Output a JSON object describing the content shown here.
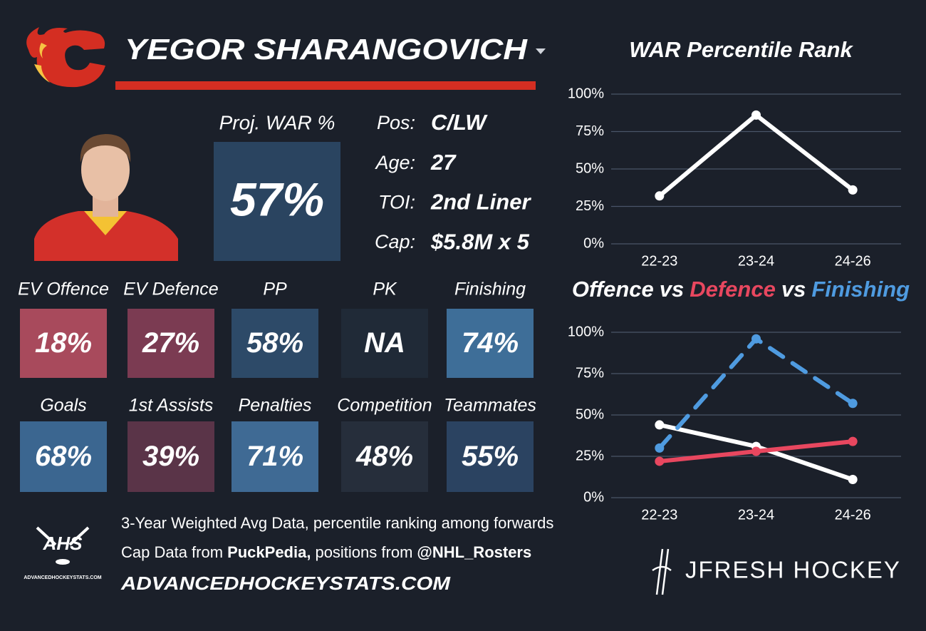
{
  "header": {
    "name": "YEGOR SHARANGOVICH"
  },
  "proj_war": {
    "label": "Proj. WAR %",
    "value": "57%"
  },
  "bio": [
    {
      "label": "Pos:",
      "value": "C/LW"
    },
    {
      "label": "Age:",
      "value": "27"
    },
    {
      "label": "TOI:",
      "value": "2nd Liner"
    },
    {
      "label": "Cap:",
      "value": "$5.8M x 5"
    }
  ],
  "tiles": [
    {
      "label": "EV Offence",
      "value": "18%",
      "color": "#a84a5c"
    },
    {
      "label": "EV Defence",
      "value": "27%",
      "color": "#7b3b52"
    },
    {
      "label": "PP",
      "value": "58%",
      "color": "#2d4a68"
    },
    {
      "label": "PK",
      "value": "NA",
      "color": "#202a37"
    },
    {
      "label": "Finishing",
      "value": "74%",
      "color": "#3e6e98"
    },
    {
      "label": "Goals",
      "value": "68%",
      "color": "#3b6690"
    },
    {
      "label": "1st Assists",
      "value": "39%",
      "color": "#5a3448"
    },
    {
      "label": "Penalties",
      "value": "71%",
      "color": "#3f6a94"
    },
    {
      "label": "Competition",
      "value": "48%",
      "color": "#262e3b"
    },
    {
      "label": "Teammates",
      "value": "55%",
      "color": "#2b4361"
    }
  ],
  "footer": {
    "note": "3-Year Weighted Avg Data, percentile ranking among forwards",
    "sources": [
      "Cap Data from",
      "PuckPedia,",
      "positions from",
      "@NHL_Rosters"
    ],
    "site": "ADVANCEDHOCKEYSTATS.COM",
    "logo_text": "AHS",
    "logo_caption": "ADVANCEDHOCKEYSTATS.COM",
    "brand": "JFRESH HOCKEY"
  },
  "chart_data": [
    {
      "type": "line",
      "title": "WAR Percentile Rank",
      "categories": [
        "22-23",
        "23-24",
        "24-26"
      ],
      "values": [
        32,
        86,
        36
      ],
      "color": "#ffffff",
      "ylim": [
        0,
        100
      ],
      "yticks": [
        {
          "value": 0,
          "label": "0%"
        },
        {
          "value": 25,
          "label": "25%"
        },
        {
          "value": 50,
          "label": "50%"
        },
        {
          "value": 75,
          "label": "75%"
        },
        {
          "value": 100,
          "label": "100%"
        }
      ],
      "grid": true
    },
    {
      "type": "line",
      "title_joiner": "vs",
      "categories": [
        "22-23",
        "23-24",
        "24-26"
      ],
      "series": [
        {
          "name": "Offence",
          "color": "#ffffff",
          "dashed": false,
          "values": [
            44,
            31,
            11
          ]
        },
        {
          "name": "Defence",
          "color": "#e8475f",
          "dashed": false,
          "values": [
            22,
            28,
            34
          ]
        },
        {
          "name": "Finishing",
          "color": "#4f9be0",
          "dashed": true,
          "values": [
            30,
            96,
            57
          ]
        }
      ],
      "ylim": [
        0,
        100
      ],
      "yticks": [
        {
          "value": 0,
          "label": "0%"
        },
        {
          "value": 25,
          "label": "25%"
        },
        {
          "value": 50,
          "label": "50%"
        },
        {
          "value": 75,
          "label": "75%"
        },
        {
          "value": 100,
          "label": "100%"
        }
      ],
      "grid": true
    }
  ]
}
